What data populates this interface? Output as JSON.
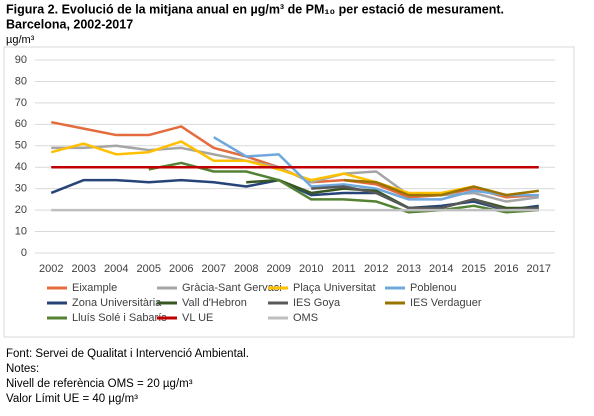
{
  "chart_data": {
    "type": "line",
    "title": "Figura 2. Evolució de la mitjana anual en µg/m³ de PM₁₀ per estació de mesurament.",
    "subtitle": "Barcelona, 2002-2017",
    "y_label": "µg/m³",
    "categories": [
      "2002",
      "2003",
      "2004",
      "2005",
      "2006",
      "2007",
      "2008",
      "2009",
      "2010",
      "2011",
      "2012",
      "2013",
      "2014",
      "2015",
      "2016",
      "2017"
    ],
    "ylim": [
      0,
      90
    ],
    "yticks": [
      0,
      10,
      20,
      30,
      40,
      50,
      60,
      70,
      80,
      90
    ],
    "grid": true,
    "series": [
      {
        "name": "Eixample",
        "color": "#e46c3c",
        "values": [
          61,
          58,
          55,
          55,
          59,
          49,
          45,
          40,
          33,
          34,
          32,
          26,
          27,
          30,
          26,
          27
        ]
      },
      {
        "name": "Gràcia-Sant Gervasi",
        "color": "#a5a5a5",
        "values": [
          49,
          49,
          50,
          48,
          49,
          46,
          43,
          40,
          33,
          37,
          38,
          27,
          27,
          28,
          24,
          26
        ]
      },
      {
        "name": "Plaça Universitat",
        "color": "#ffc000",
        "values": [
          47,
          51,
          46,
          47,
          52,
          43,
          43,
          39,
          34,
          37,
          33,
          28,
          28,
          31,
          27,
          29
        ]
      },
      {
        "name": "Poblenou",
        "color": "#6fa8dc",
        "values": [
          null,
          null,
          null,
          null,
          null,
          54,
          45,
          46,
          31,
          32,
          30,
          25,
          25,
          29,
          27,
          27
        ]
      },
      {
        "name": "Zona Universitària",
        "color": "#264478",
        "values": [
          28,
          34,
          34,
          33,
          34,
          33,
          31,
          34,
          27,
          28,
          28,
          21,
          22,
          24,
          20,
          22
        ]
      },
      {
        "name": "Vall d'Hebron",
        "color": "#375623",
        "values": [
          null,
          null,
          null,
          null,
          null,
          null,
          33,
          34,
          28,
          30,
          29,
          21,
          21,
          25,
          21,
          21
        ]
      },
      {
        "name": "IES Goya",
        "color": "#595959",
        "values": [
          null,
          null,
          null,
          null,
          null,
          null,
          null,
          null,
          30,
          31,
          28,
          21,
          21,
          25,
          20,
          21
        ]
      },
      {
        "name": "IES Verdaguer",
        "color": "#997300",
        "values": [
          null,
          null,
          null,
          null,
          null,
          null,
          null,
          null,
          null,
          34,
          33,
          27,
          27,
          31,
          27,
          29
        ]
      },
      {
        "name": "Lluís Solé i Sabarís",
        "color": "#548235",
        "values": [
          null,
          null,
          null,
          39,
          42,
          38,
          38,
          34,
          25,
          25,
          24,
          19,
          20,
          22,
          19,
          20
        ]
      },
      {
        "name": "VL UE",
        "color": "#c00000",
        "values": [
          40,
          40,
          40,
          40,
          40,
          40,
          40,
          40,
          40,
          40,
          40,
          40,
          40,
          40,
          40,
          40
        ]
      },
      {
        "name": "OMS",
        "color": "#bfbfbf",
        "values": [
          20,
          20,
          20,
          20,
          20,
          20,
          20,
          20,
          20,
          20,
          20,
          20,
          20,
          20,
          20,
          20
        ]
      }
    ]
  },
  "footer": {
    "source": "Font: Servei de Qualitat i Intervenció Ambiental.",
    "notes_title": "Notes:",
    "notes": [
      "Nivell de referència OMS = 20 µg/m³",
      "Valor Límit UE = 40 µg/m³"
    ]
  }
}
